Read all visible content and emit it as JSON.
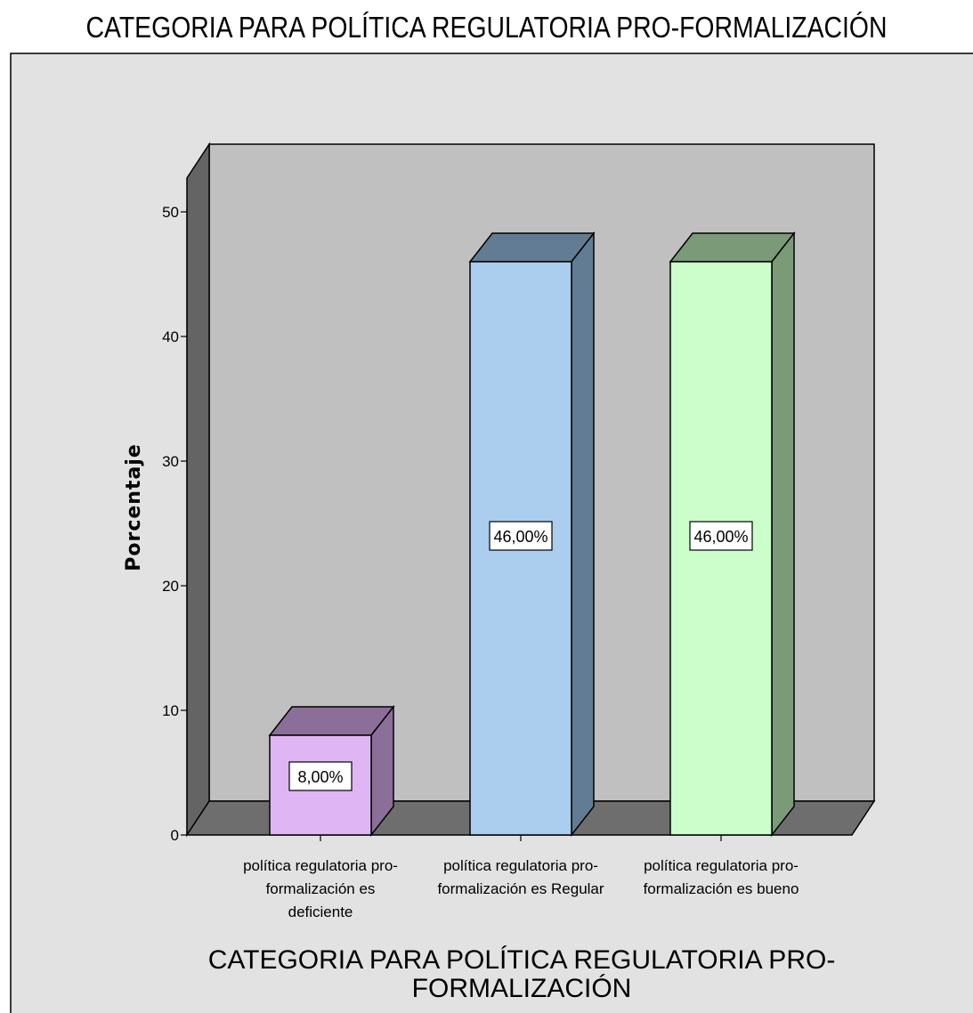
{
  "chart_data": {
    "type": "bar",
    "title": "CATEGORIA PARA POLÍTICA REGULATORIA PRO-FORMALIZACIÓN",
    "xlabel": [
      "CATEGORIA PARA POLÍTICA REGULATORIA PRO-",
      "FORMALIZACIÓN"
    ],
    "ylabel": "Porcentaje",
    "ylim": [
      0,
      50
    ],
    "yticks": [
      "0",
      "10",
      "20",
      "30",
      "40",
      "50"
    ],
    "categories": [
      [
        "política regulatoria pro-",
        "formalización es",
        "deficiente"
      ],
      [
        "política regulatoria pro-",
        "formalización es Regular"
      ],
      [
        "política regulatoria pro-",
        "formalización es bueno"
      ]
    ],
    "values": [
      8,
      46,
      46
    ],
    "value_labels": [
      "8,00%",
      "46,00%",
      "46,00%"
    ],
    "colors": {
      "front": [
        "#dfb6f3",
        "#abcdee",
        "#ccfecc"
      ],
      "side": [
        "#8c6f98",
        "#627d93",
        "#7a9a78"
      ],
      "plot_background": "#c0c0c0",
      "outer_background": "#e2e2e2",
      "floor": "#6e6e6e",
      "side_wall": "#646464"
    },
    "grid": false,
    "legend": "none"
  }
}
